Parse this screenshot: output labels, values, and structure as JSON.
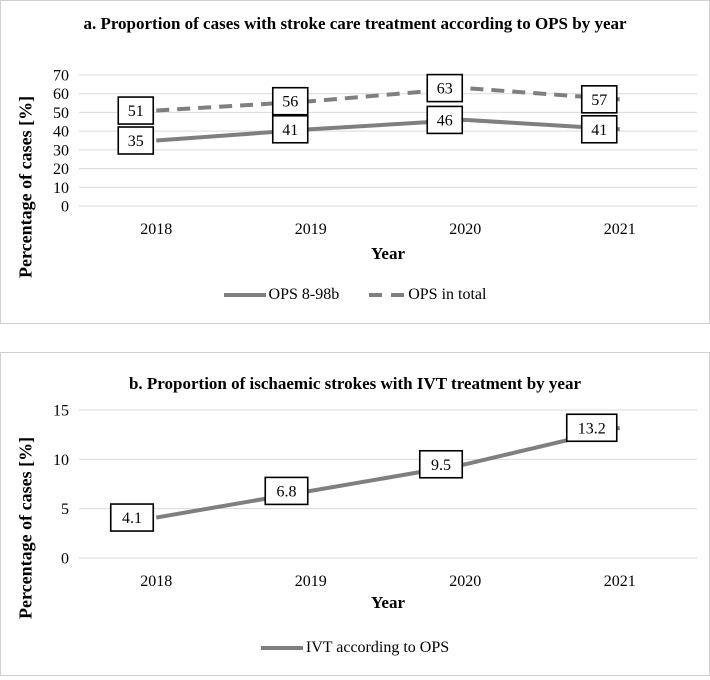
{
  "page": {
    "background": "#ffffff"
  },
  "colors": {
    "series_line": "#7f7f7f",
    "gridline": "#d9d9d9",
    "panel_border": "#d0d0d0",
    "label_box_bg": "#ffffff",
    "label_box_border": "#000000",
    "text": "#000000"
  },
  "chart_data": [
    {
      "type": "line",
      "title": "a. Proportion of cases with stroke care treatment according to OPS by year",
      "xlabel": "Year",
      "ylabel": "Percentage of cases [%]",
      "categories": [
        "2018",
        "2019",
        "2020",
        "2021"
      ],
      "ylim": [
        0,
        70
      ],
      "yticks": [
        0,
        10,
        20,
        30,
        40,
        50,
        60,
        70
      ],
      "grid": true,
      "legend_position": "bottom",
      "series": [
        {
          "name": "OPS 8-98b",
          "line_style": "solid",
          "color": "#7f7f7f",
          "values": [
            35,
            41,
            46,
            41
          ],
          "labels": [
            "35",
            "41",
            "46",
            "41"
          ]
        },
        {
          "name": "OPS in total",
          "line_style": "dashed",
          "color": "#7f7f7f",
          "values": [
            51,
            56,
            63,
            57
          ],
          "labels": [
            "51",
            "56",
            "63",
            "57"
          ]
        }
      ]
    },
    {
      "type": "line",
      "title": "b. Proportion of ischaemic strokes with IVT treatment by year",
      "xlabel": "Year",
      "ylabel": "Percentage of cases [%]",
      "categories": [
        "2018",
        "2019",
        "2020",
        "2021"
      ],
      "ylim": [
        0,
        15
      ],
      "yticks": [
        0,
        5,
        10,
        15
      ],
      "grid": true,
      "legend_position": "bottom",
      "series": [
        {
          "name": "IVT according to OPS",
          "line_style": "solid",
          "color": "#7f7f7f",
          "values": [
            4.1,
            6.8,
            9.5,
            13.2
          ],
          "labels": [
            "4.1",
            "6.8",
            "9.5",
            "13.2"
          ]
        }
      ]
    }
  ]
}
